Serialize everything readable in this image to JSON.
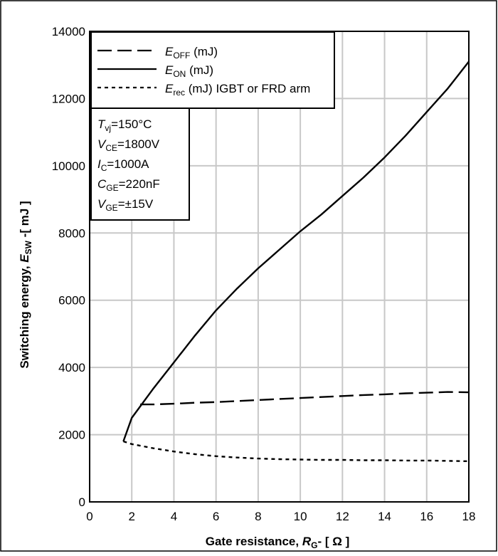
{
  "chart_data": {
    "type": "line",
    "xlabel": {
      "main": "Gate resistance, ",
      "symbol": "R",
      "sub": "G",
      "unit": "- [ Ω ]"
    },
    "ylabel": {
      "main": "Switching energy, ",
      "symbol": "E",
      "sub": "SW",
      "unit": " -[ mJ ]"
    },
    "xlim": [
      0,
      18
    ],
    "ylim": [
      0,
      14000
    ],
    "x_ticks": [
      0,
      2,
      4,
      6,
      8,
      10,
      12,
      14,
      16,
      18
    ],
    "y_ticks": [
      0,
      2000,
      4000,
      6000,
      8000,
      10000,
      12000,
      14000
    ],
    "grid": true,
    "legend_position": "top-left",
    "series": [
      {
        "name": "E_OFF (mJ)",
        "label": {
          "symbol": "E",
          "sub": "OFF",
          "rest": " (mJ)"
        },
        "style": "dashed",
        "color": "#000000",
        "x": [
          2.4,
          3,
          4,
          5,
          6,
          7,
          8,
          9,
          10,
          11,
          12,
          13,
          14,
          15,
          16,
          17,
          18
        ],
        "y": [
          2900,
          2900,
          2920,
          2950,
          2970,
          3000,
          3030,
          3060,
          3090,
          3120,
          3150,
          3180,
          3200,
          3230,
          3250,
          3270,
          3260
        ]
      },
      {
        "name": "E_ON (mJ)",
        "label": {
          "symbol": "E",
          "sub": "ON",
          "rest": " (mJ)"
        },
        "style": "solid",
        "color": "#000000",
        "x": [
          1.6,
          2,
          3,
          4,
          5,
          6,
          7,
          8,
          9,
          10,
          11,
          12,
          13,
          14,
          15,
          16,
          17,
          18
        ],
        "y": [
          1800,
          2500,
          3350,
          4150,
          4950,
          5700,
          6350,
          6950,
          7500,
          8050,
          8550,
          9100,
          9650,
          10250,
          10900,
          11600,
          12300,
          13100
        ]
      },
      {
        "name": "E_rec (mJ) IGBT or FRD arm",
        "label": {
          "symbol": "E",
          "sub": "rec",
          "rest": " (mJ) IGBT or FRD arm"
        },
        "style": "dotted",
        "color": "#000000",
        "x": [
          1.6,
          2,
          3,
          4,
          5,
          6,
          7,
          8,
          9,
          10,
          11,
          12,
          13,
          14,
          15,
          16,
          17,
          18
        ],
        "y": [
          1800,
          1720,
          1600,
          1500,
          1420,
          1360,
          1320,
          1290,
          1270,
          1260,
          1250,
          1250,
          1240,
          1240,
          1230,
          1230,
          1220,
          1210
        ]
      }
    ],
    "conditions": [
      {
        "symbol": "T",
        "sub": "vj",
        "value": "=150°C"
      },
      {
        "symbol": "V",
        "sub": "CE",
        "value": "=1800V"
      },
      {
        "symbol": "I",
        "sub": "C",
        "value": "=1000A"
      },
      {
        "symbol": "C",
        "sub": "GE",
        "value": "=220nF"
      },
      {
        "symbol": "V",
        "sub": "GE",
        "value": "=±15V"
      }
    ]
  }
}
